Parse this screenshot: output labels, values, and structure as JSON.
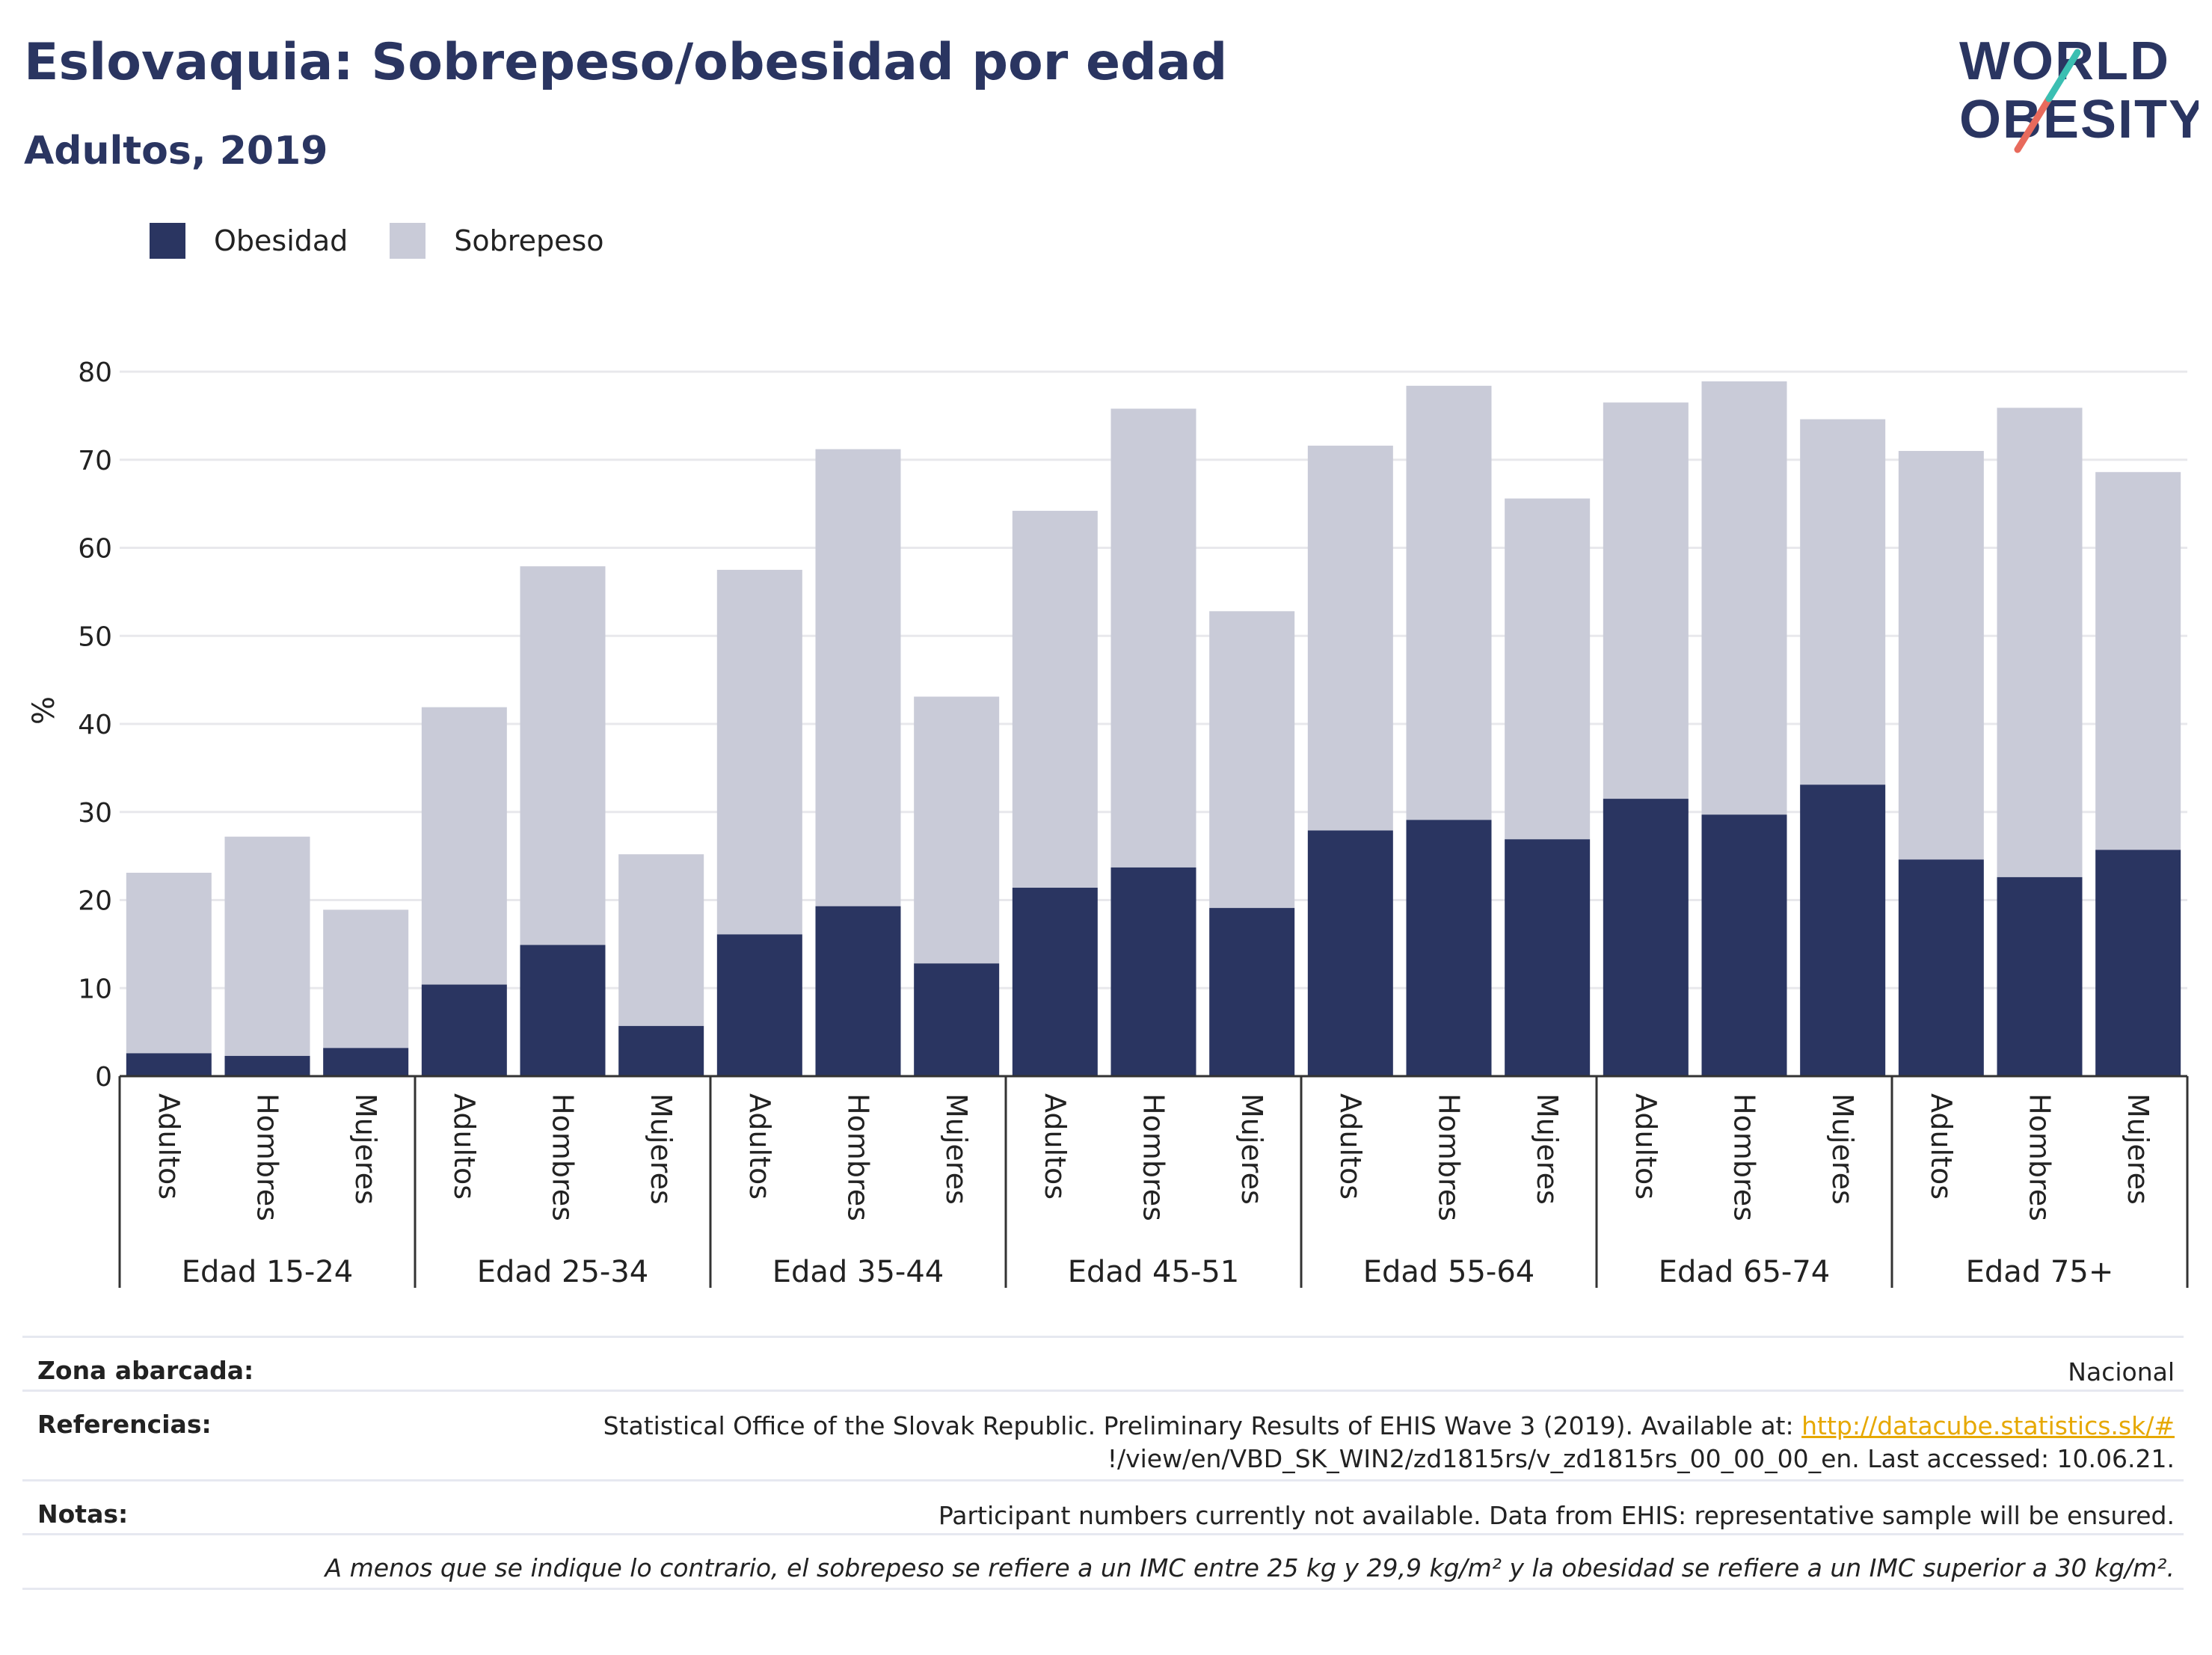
{
  "header": {
    "title": "Eslovaquia: Sobrepeso/obesidad por edad",
    "subtitle": "Adultos, 2019"
  },
  "logo": {
    "line1": "WORLD",
    "line2": "OBESITY"
  },
  "colors": {
    "title": "#2a3561",
    "obesidad": "#2a3561",
    "sobrepeso": "#c9cbd8",
    "logo_teal": "#3bbfb2",
    "logo_coral": "#e86a5c",
    "link": "#e6a800"
  },
  "legend": {
    "items": [
      "Obesidad",
      "Sobrepeso"
    ]
  },
  "chart_data": {
    "type": "bar",
    "stacked": true,
    "title": "Eslovaquia: Sobrepeso/obesidad por edad",
    "subtitle": "Adultos, 2019",
    "ylabel": "%",
    "xlabel": "",
    "ylim": [
      0,
      80
    ],
    "yticks": [
      0,
      10,
      20,
      30,
      40,
      50,
      60,
      70,
      80
    ],
    "grid": true,
    "legend_position": "top-left",
    "groups": [
      "Edad 15-24",
      "Edad 25-34",
      "Edad 35-44",
      "Edad 45-51",
      "Edad 55-64",
      "Edad 65-74",
      "Edad 75+"
    ],
    "subcategories": [
      "Adultos",
      "Hombres",
      "Mujeres"
    ],
    "series": [
      {
        "name": "Obesidad",
        "values": [
          2.6,
          2.3,
          3.2,
          10.4,
          14.9,
          5.7,
          16.1,
          19.3,
          12.8,
          21.4,
          23.7,
          19.1,
          27.9,
          29.1,
          26.9,
          31.5,
          29.7,
          33.1,
          24.6,
          22.6,
          25.7
        ]
      },
      {
        "name": "Sobrepeso",
        "values": [
          20.5,
          24.9,
          15.7,
          31.5,
          43.0,
          19.5,
          41.4,
          51.9,
          30.3,
          42.8,
          52.1,
          33.7,
          43.7,
          49.3,
          38.7,
          45.0,
          49.2,
          41.5,
          46.4,
          53.3,
          42.9
        ]
      }
    ]
  },
  "info": {
    "rows": [
      {
        "label": "Zona abarcada:",
        "value": "Nacional"
      },
      {
        "label": "Referencias:",
        "value_pre": "Statistical Office of the Slovak Republic. Preliminary Results of EHIS Wave 3 (2019). Available at: ",
        "link": "http://datacube.statistics.sk/#",
        "value_line2": "!/view/en/VBD_SK_WIN2/zd1815rs/v_zd1815rs_00_00_00_en. Last accessed: 10.06.21."
      },
      {
        "label": "Notas:",
        "value": "Participant numbers currently not available. Data from EHIS: representative sample will be ensured."
      }
    ],
    "footnote": "A menos que se indique lo contrario, el sobrepeso se refiere a un IMC entre 25 kg y 29,9 kg/m² y la obesidad se refiere a un IMC superior a 30 kg/m²."
  }
}
